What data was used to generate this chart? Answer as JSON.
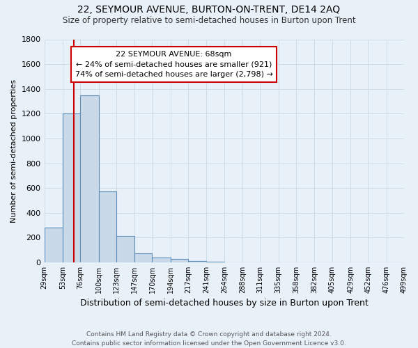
{
  "title": "22, SEYMOUR AVENUE, BURTON-ON-TRENT, DE14 2AQ",
  "subtitle": "Size of property relative to semi-detached houses in Burton upon Trent",
  "xlabel": "Distribution of semi-detached houses by size in Burton upon Trent",
  "ylabel": "Number of semi-detached properties",
  "bin_labels": [
    "29sqm",
    "53sqm",
    "76sqm",
    "100sqm",
    "123sqm",
    "147sqm",
    "170sqm",
    "194sqm",
    "217sqm",
    "241sqm",
    "264sqm",
    "288sqm",
    "311sqm",
    "335sqm",
    "358sqm",
    "382sqm",
    "405sqm",
    "429sqm",
    "452sqm",
    "476sqm",
    "499sqm"
  ],
  "bin_edges": [
    29,
    53,
    76,
    100,
    123,
    147,
    170,
    194,
    217,
    241,
    264,
    288,
    311,
    335,
    358,
    382,
    405,
    429,
    452,
    476,
    499
  ],
  "bar_heights": [
    280,
    1200,
    1350,
    570,
    215,
    75,
    40,
    25,
    12,
    5,
    2,
    0,
    0,
    0,
    0,
    0,
    0,
    0,
    0,
    0
  ],
  "bar_color": "#c9d9e8",
  "bar_edge_color": "#5b8db8",
  "property_line_x": 68,
  "red_line_color": "#cc0000",
  "annotation_title": "22 SEYMOUR AVENUE: 68sqm",
  "annotation_line1": "← 24% of semi-detached houses are smaller (921)",
  "annotation_line2": "74% of semi-detached houses are larger (2,798) →",
  "annotation_box_color": "#ffffff",
  "annotation_box_edge": "#cc0000",
  "ylim": [
    0,
    1800
  ],
  "yticks": [
    0,
    200,
    400,
    600,
    800,
    1000,
    1200,
    1400,
    1600,
    1800
  ],
  "grid_color": "#ccdde8",
  "background_color": "#e8f0f8",
  "footer1": "Contains HM Land Registry data © Crown copyright and database right 2024.",
  "footer2": "Contains public sector information licensed under the Open Government Licence v3.0."
}
